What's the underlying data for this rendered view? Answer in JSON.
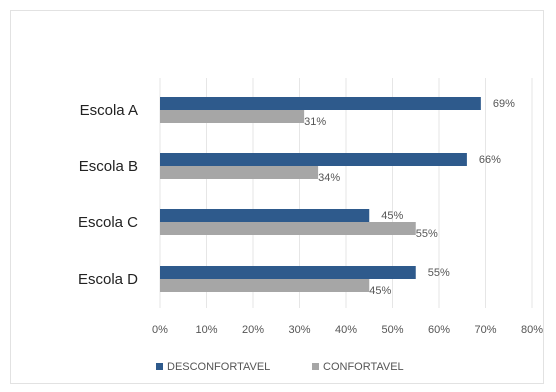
{
  "chart_data": {
    "type": "bar",
    "orientation": "horizontal",
    "categories": [
      "Escola A",
      "Escola B",
      "Escola C",
      "Escola D"
    ],
    "series": [
      {
        "name": "DESCONFORTAVEL",
        "values": [
          69,
          66,
          45,
          55
        ],
        "labels": [
          "69%",
          "66%",
          "45%",
          "55%"
        ],
        "color": "#2e5a8c"
      },
      {
        "name": "CONFORTAVEL",
        "values": [
          31,
          34,
          55,
          45
        ],
        "labels": [
          "31%",
          "34%",
          "55%",
          "45%"
        ],
        "color": "#a6a6a6"
      }
    ],
    "xlim": [
      0,
      80
    ],
    "xticks": [
      "0%",
      "10%",
      "20%",
      "30%",
      "40%",
      "50%",
      "60%",
      "70%",
      "80%"
    ],
    "grid": true,
    "legend_position": "bottom"
  }
}
